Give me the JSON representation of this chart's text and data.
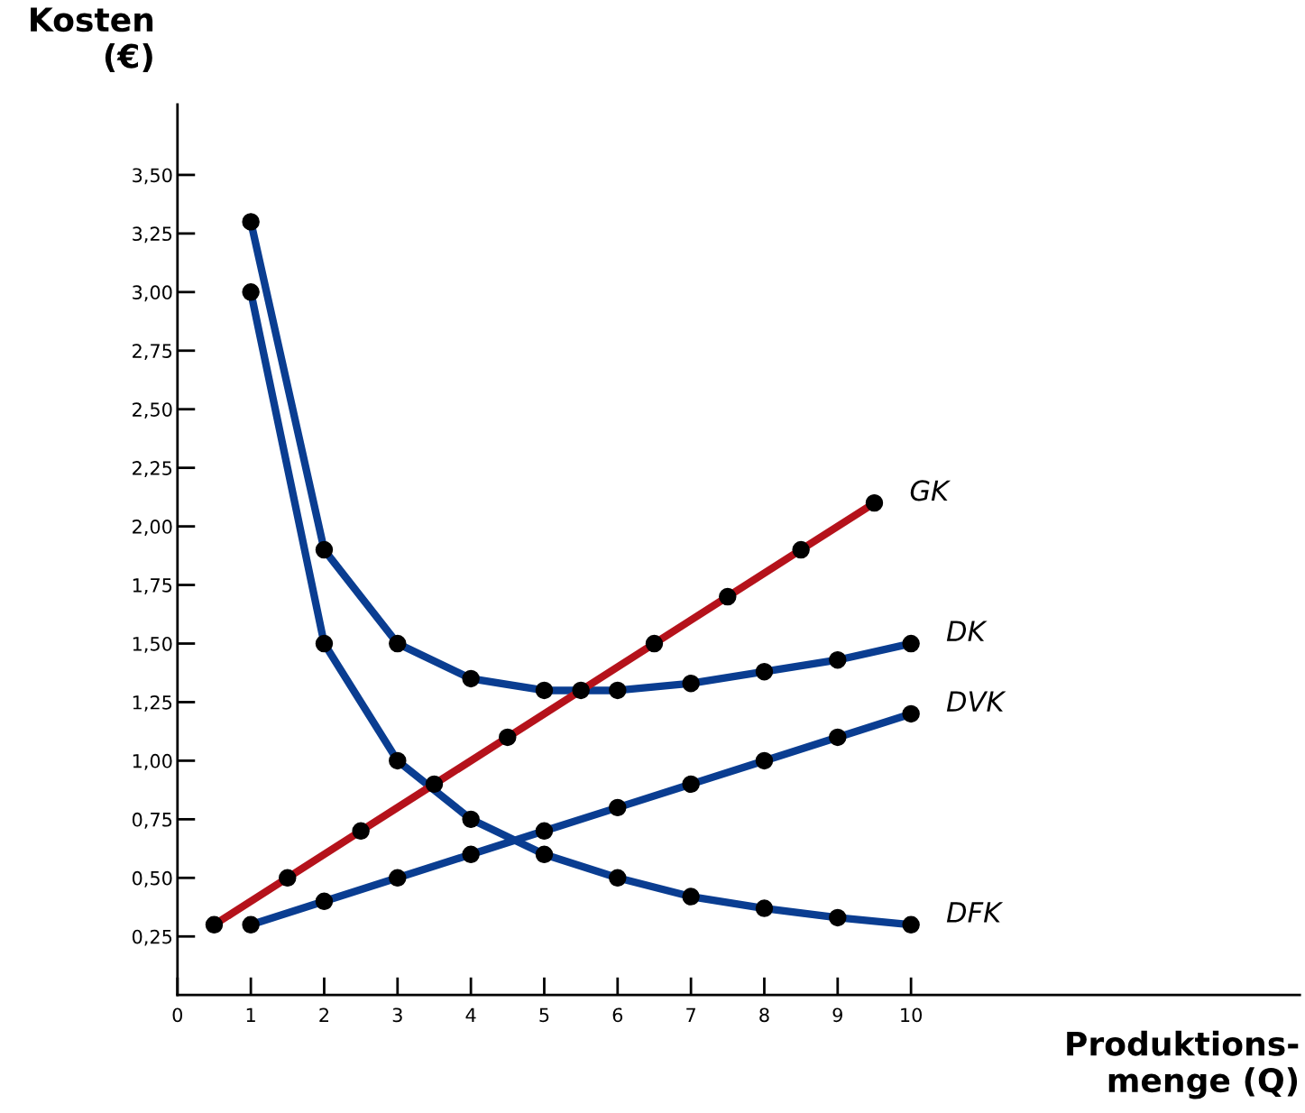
{
  "chart_data": {
    "type": "line",
    "xlabel": "Produktions-\nmenge (Q)",
    "ylabel": "Kosten\n(€)",
    "xlim": [
      0,
      15.3
    ],
    "ylim": [
      0,
      3.8
    ],
    "xticks": [
      {
        "value": 0,
        "label": "0"
      },
      1,
      2,
      3,
      4,
      5,
      6,
      7,
      8,
      9,
      10
    ],
    "yticks": [
      {
        "value": 0.25,
        "label": "0,25"
      },
      {
        "value": 0.5,
        "label": "0,50"
      },
      {
        "value": 0.75,
        "label": "0,75"
      },
      {
        "value": 1.0,
        "label": "1,00"
      },
      {
        "value": 1.25,
        "label": "1,25"
      },
      {
        "value": 1.5,
        "label": "1,50"
      },
      {
        "value": 1.75,
        "label": "1,75"
      },
      {
        "value": 2.0,
        "label": "2,00"
      },
      {
        "value": 2.25,
        "label": "2,25"
      },
      {
        "value": 2.5,
        "label": "2,50"
      },
      {
        "value": 2.75,
        "label": "2,75"
      },
      {
        "value": 3.0,
        "label": "3,00"
      },
      {
        "value": 3.25,
        "label": "3,25"
      },
      {
        "value": 3.5,
        "label": "3,50"
      }
    ],
    "grid": false,
    "legend": false,
    "marker": "circle",
    "line_style": "solid",
    "series": [
      {
        "name": "GK",
        "color": "#b5121b",
        "x": [
          0.5,
          1.5,
          2.5,
          3.5,
          4.5,
          5.5,
          6.5,
          7.5,
          8.5,
          9.5
        ],
        "values": [
          0.3,
          0.5,
          0.7,
          0.9,
          1.1,
          1.3,
          1.5,
          1.7,
          1.9,
          2.1
        ]
      },
      {
        "name": "DK",
        "color": "#0a3d91",
        "x": [
          1,
          2,
          3,
          4,
          5,
          6,
          7,
          8,
          9,
          10
        ],
        "values": [
          3.3,
          1.9,
          1.5,
          1.35,
          1.3,
          1.3,
          1.33,
          1.38,
          1.43,
          1.5
        ]
      },
      {
        "name": "DVK",
        "color": "#0a3d91",
        "x": [
          1,
          2,
          3,
          4,
          5,
          6,
          7,
          8,
          9,
          10
        ],
        "values": [
          0.3,
          0.4,
          0.5,
          0.6,
          0.7,
          0.8,
          0.9,
          1.0,
          1.1,
          1.2
        ]
      },
      {
        "name": "DFK",
        "color": "#0a3d91",
        "x": [
          1,
          2,
          3,
          4,
          5,
          6,
          7,
          8,
          9,
          10
        ],
        "values": [
          3.0,
          1.5,
          1.0,
          0.75,
          0.6,
          0.5,
          0.42,
          0.37,
          0.33,
          0.3
        ]
      }
    ]
  }
}
